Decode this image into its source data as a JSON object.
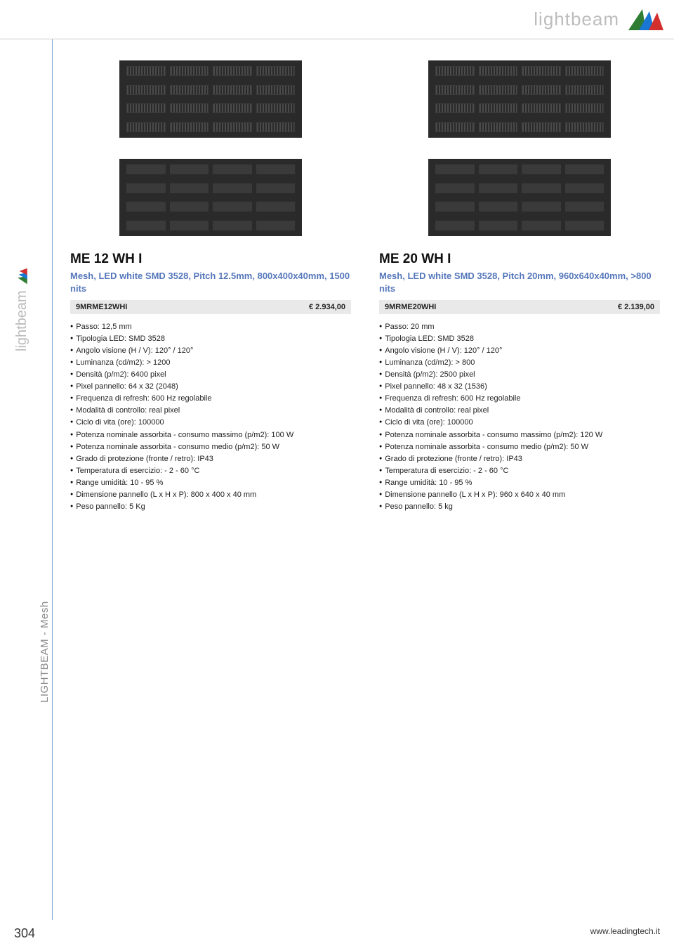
{
  "brand": "lightbeam",
  "logo_colors": [
    "#2e7d32",
    "#1976d2",
    "#d32f2f"
  ],
  "side_brand": "lightbeam",
  "side_category": "LIGHTBEAM - Mesh",
  "page_number": "304",
  "footer_url": "www.leadingtech.it",
  "products": [
    {
      "title": "ME 12 WH I",
      "subtitle": "Mesh, LED white SMD 3528, Pitch 12.5mm, 800x400x40mm, 1500 nits",
      "sku": "9MRME12WHI",
      "price": "€  2.934,00",
      "specs": [
        "Passo: 12,5 mm",
        "Tipologia LED: SMD 3528",
        "Angolo visione (H / V): 120° / 120°",
        "Luminanza (cd/m2): > 1200",
        "Densità (p/m2): 6400 pixel",
        "Pixel pannello: 64 x 32 (2048)",
        "Frequenza di refresh: 600 Hz regolabile",
        "Modalità di controllo: real pixel",
        "Ciclo di vita (ore): 100000",
        "Potenza nominale assorbita - consumo massimo (p/m2): 100 W",
        "Potenza nominale assorbita - consumo medio (p/m2): 50 W",
        "Grado di protezione (fronte / retro): IP43",
        "Temperatura di esercizio: - 2 - 60 °C",
        "Range umidità: 10 - 95 %",
        "Dimensione pannello (L x H x P): 800 x 400 x 40 mm",
        "Peso pannello: 5 Kg"
      ]
    },
    {
      "title": "ME 20 WH I",
      "subtitle": "Mesh, LED white SMD 3528, Pitch 20mm, 960x640x40mm, >800 nits",
      "sku": "9MRME20WHI",
      "price": "€  2.139,00",
      "specs": [
        "Passo: 20 mm",
        "Tipologia LED: SMD 3528",
        "Angolo visione (H / V): 120° / 120°",
        "Luminanza (cd/m2): > 800",
        "Densità (p/m2): 2500 pixel",
        "Pixel pannello: 48 x 32 (1536)",
        "Frequenza di refresh: 600 Hz regolabile",
        "Modalità di controllo: real pixel",
        "Ciclo di vita (ore): 100000",
        "Potenza nominale assorbita - consumo massimo (p/m2): 120 W",
        "Potenza nominale assorbita - consumo medio (p/m2): 50 W",
        "Grado di protezione (fronte / retro): IP43",
        "Temperatura di esercizio: - 2 - 60 °C",
        "Range umidità: 10 - 95 %",
        "Dimensione pannello (L x H x P): 960 x 640 x 40 mm",
        "Peso pannello: 5 kg"
      ]
    }
  ]
}
